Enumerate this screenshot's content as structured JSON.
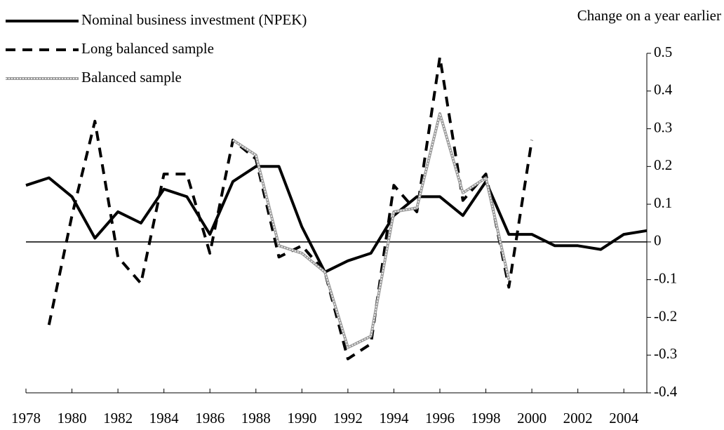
{
  "chart_data": {
    "type": "line",
    "y_axis_label": "Change on a year earlier",
    "x": [
      1978,
      1979,
      1980,
      1981,
      1982,
      1983,
      1984,
      1985,
      1986,
      1987,
      1988,
      1989,
      1990,
      1991,
      1992,
      1993,
      1994,
      1995,
      1996,
      1997,
      1998,
      1999,
      2000,
      2001,
      2002,
      2003,
      2004,
      2005
    ],
    "series": [
      {
        "name": "Nominal business investment (NPEK)",
        "color": "#000000",
        "style": "solid",
        "values": [
          0.15,
          0.17,
          0.12,
          0.01,
          0.08,
          0.05,
          0.14,
          0.12,
          0.02,
          0.16,
          0.2,
          0.2,
          0.04,
          -0.08,
          -0.05,
          -0.03,
          0.07,
          0.12,
          0.12,
          0.07,
          0.16,
          0.02,
          0.02,
          -0.01,
          -0.01,
          -0.02,
          0.02,
          0.03
        ]
      },
      {
        "name": "Long balanced sample",
        "color": "#000000",
        "style": "dashed",
        "values": [
          null,
          -0.22,
          0.07,
          0.32,
          -0.04,
          -0.11,
          0.18,
          0.18,
          -0.03,
          0.27,
          0.22,
          -0.04,
          -0.01,
          -0.08,
          -0.31,
          -0.27,
          0.15,
          0.08,
          0.49,
          0.11,
          0.18,
          -0.12,
          0.27,
          null,
          null,
          null,
          null,
          null
        ]
      },
      {
        "name": "Balanced sample",
        "color": "#999999",
        "style": "double",
        "values": [
          null,
          null,
          null,
          null,
          null,
          null,
          null,
          null,
          null,
          0.27,
          0.23,
          -0.01,
          -0.03,
          -0.08,
          -0.28,
          -0.25,
          0.08,
          0.09,
          0.34,
          0.13,
          0.17,
          -0.1,
          null,
          null,
          null,
          null,
          null,
          null
        ]
      }
    ],
    "xlim": [
      1978,
      2005
    ],
    "xticks": [
      1978,
      1980,
      1982,
      1984,
      1986,
      1988,
      1990,
      1992,
      1994,
      1996,
      1998,
      2000,
      2002,
      2004
    ],
    "ylim": [
      -0.4,
      0.5
    ],
    "yticks": [
      -0.4,
      -0.3,
      -0.2,
      -0.1,
      0,
      0.1,
      0.2,
      0.3,
      0.4,
      0.5
    ],
    "legend": "top-left",
    "grid": false
  }
}
